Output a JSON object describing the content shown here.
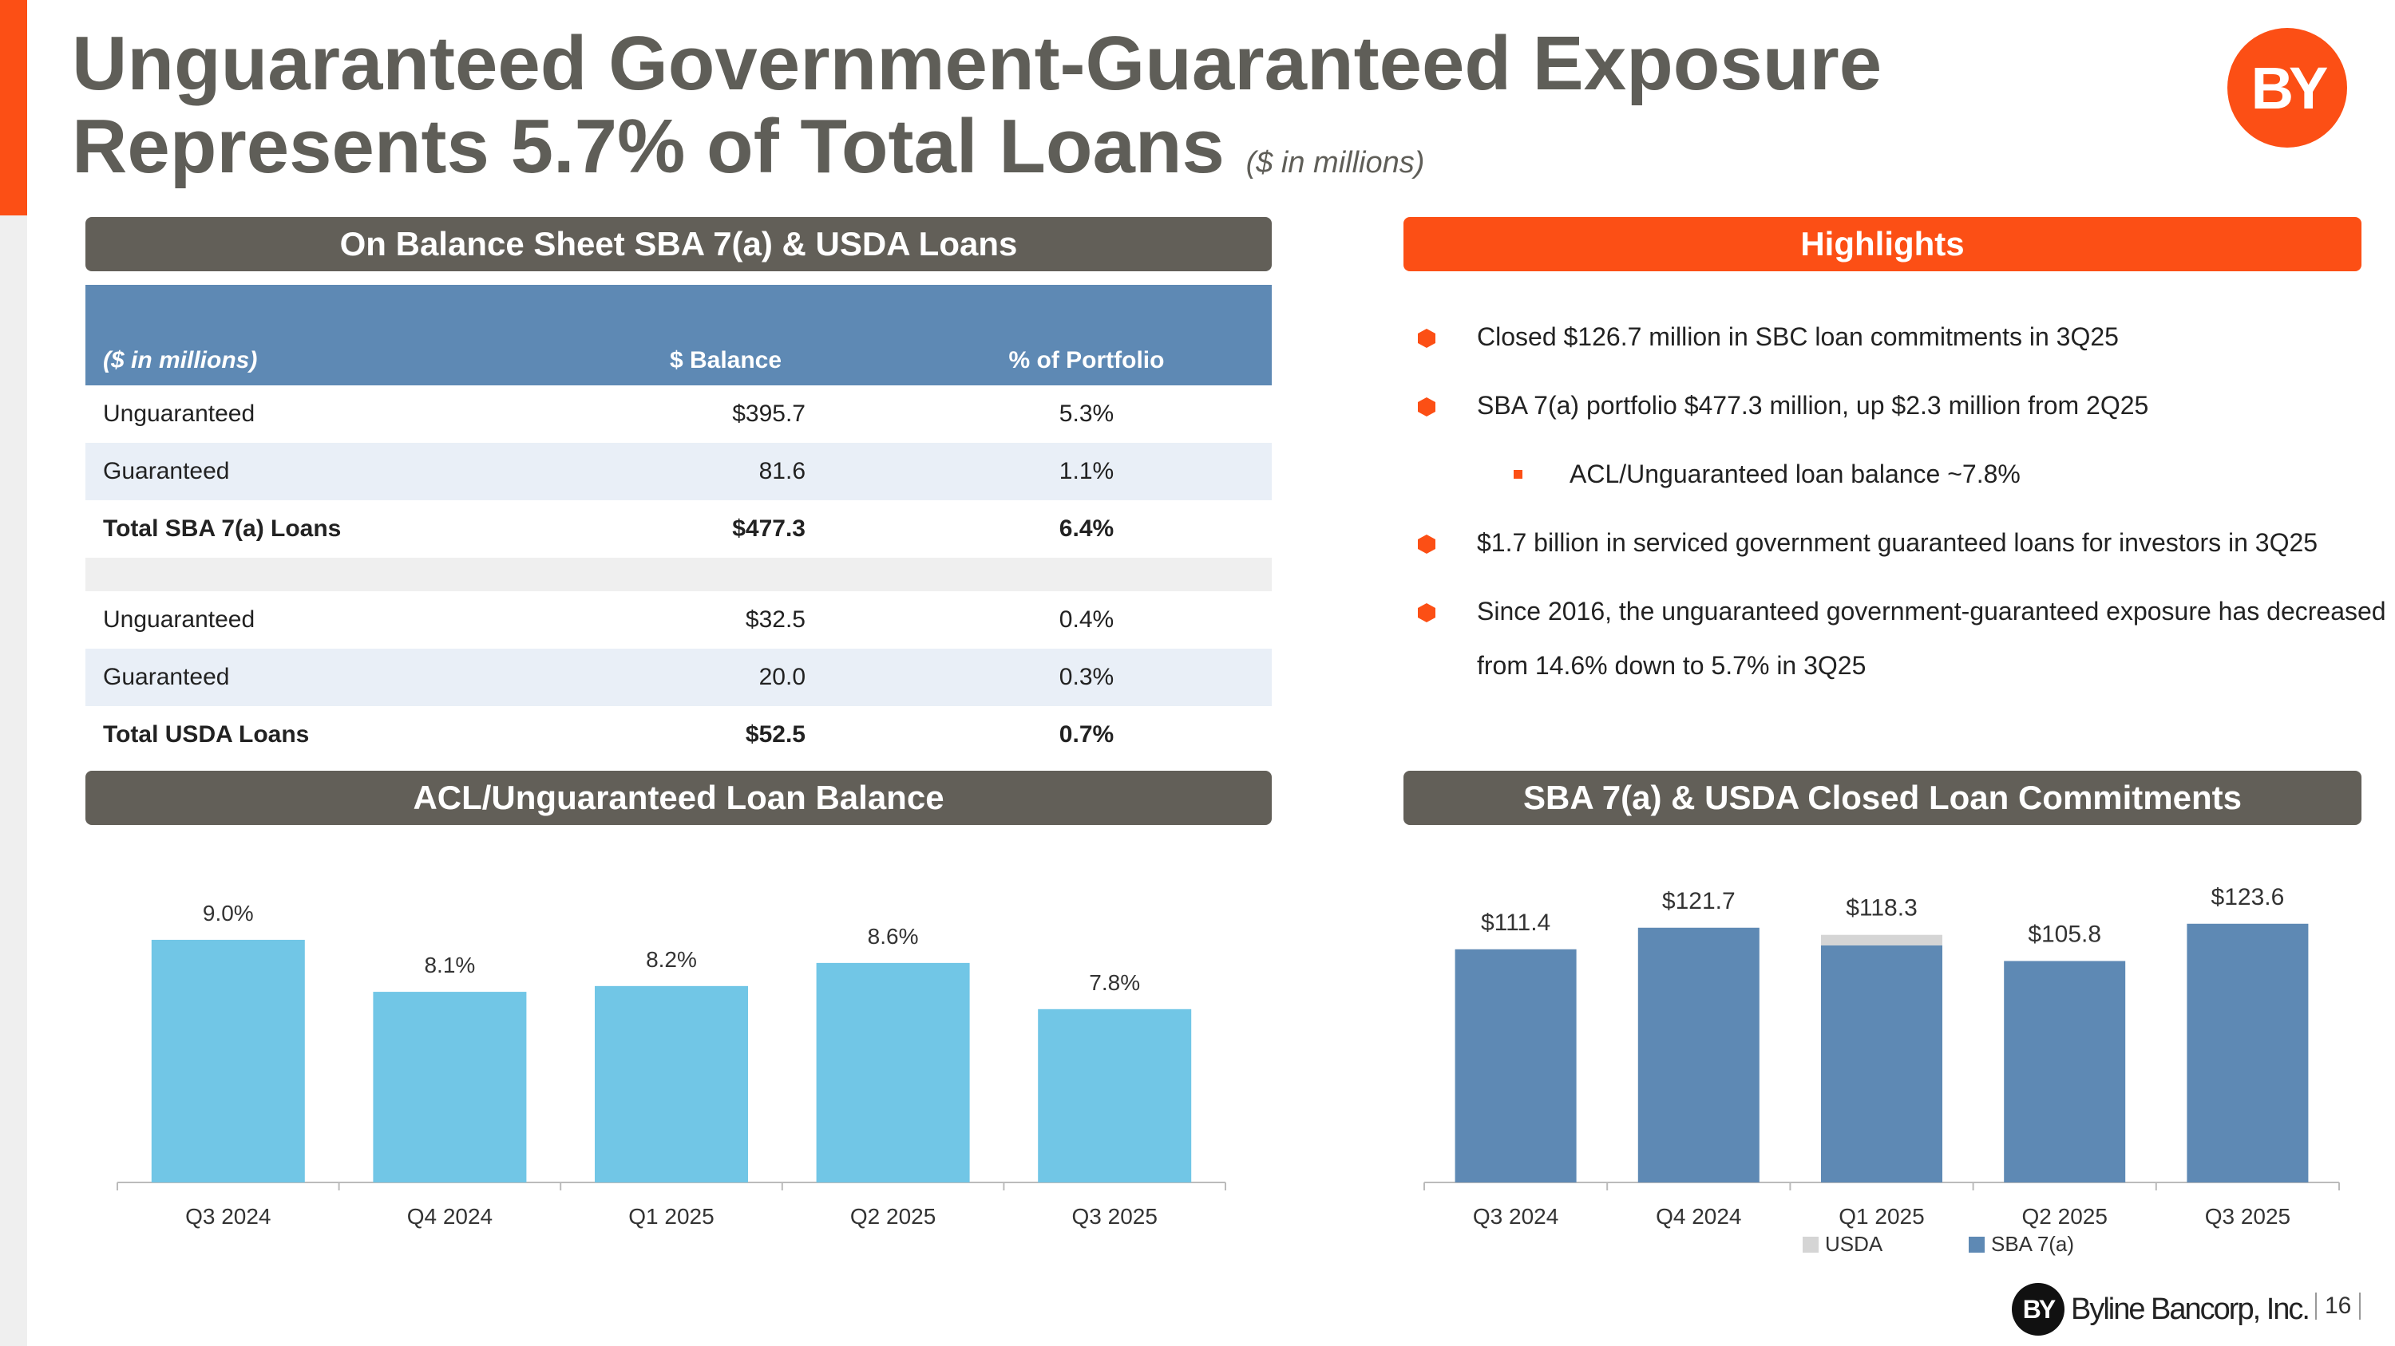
{
  "title": {
    "line1": "Unguaranteed Government-Guaranteed Exposure",
    "line2": "Represents 5.7% of Total Loans",
    "unit": "($ in millions)"
  },
  "logo": {
    "text": "BY"
  },
  "sections": {
    "table_title": "On Balance Sheet SBA 7(a) & USDA Loans",
    "highlights_title": "Highlights",
    "acl_title": "ACL/Unguaranteed Loan Balance",
    "commitments_title": "SBA 7(a) & USDA Closed Loan Commitments"
  },
  "table": {
    "headers": [
      "($ in millions)",
      "$ Balance",
      "% of Portfolio"
    ],
    "rows": [
      {
        "label": "Unguaranteed",
        "balance": "$395.7",
        "pct": "5.3%"
      },
      {
        "label": "Guaranteed",
        "balance": "81.6",
        "pct": "1.1%"
      },
      {
        "label": "Total SBA 7(a) Loans",
        "balance": "$477.3",
        "pct": "6.4%"
      },
      {
        "label": "Unguaranteed",
        "balance": "$32.5",
        "pct": "0.4%"
      },
      {
        "label": "Guaranteed",
        "balance": "20.0",
        "pct": "0.3%"
      },
      {
        "label": "Total USDA Loans",
        "balance": "$52.5",
        "pct": "0.7%"
      }
    ]
  },
  "highlights": [
    "Closed $126.7 million in SBC loan commitments in 3Q25",
    "SBA 7(a) portfolio $477.3 million, up $2.3 million from 2Q25",
    "ACL/Unguaranteed loan balance ~7.8%",
    "$1.7 billion in serviced government guaranteed loans for investors in 3Q25",
    "Since 2016, the unguaranteed government-guaranteed exposure has decreased from 14.6% down to 5.7% in 3Q25"
  ],
  "colors": {
    "accent": "#fc4f15",
    "section_grey": "#625f58",
    "table_header": "#5e89b4",
    "acl_bar": "#71c6e6",
    "sba_bar": "#5e89b4",
    "usda_bar": "#d5d5d5"
  },
  "chart_data": [
    {
      "type": "bar",
      "title": "ACL/Unguaranteed Loan Balance",
      "categories": [
        "Q3 2024",
        "Q4 2024",
        "Q1 2025",
        "Q2 2025",
        "Q3 2025"
      ],
      "values": [
        9.0,
        8.1,
        8.2,
        8.6,
        7.8
      ],
      "labels": [
        "9.0%",
        "8.1%",
        "8.2%",
        "8.6%",
        "7.8%"
      ],
      "ylim": [
        4.8,
        9.8
      ]
    },
    {
      "type": "bar",
      "stacked": true,
      "title": "SBA 7(a) & USDA Closed Loan Commitments",
      "categories": [
        "Q3 2024",
        "Q4 2024",
        "Q1 2025",
        "Q2 2025",
        "Q3 2025"
      ],
      "series": [
        {
          "name": "SBA 7(a)",
          "values": [
            111.4,
            121.7,
            113.3,
            105.8,
            123.6
          ]
        },
        {
          "name": "USDA",
          "values": [
            0,
            0,
            5.0,
            0,
            0
          ]
        }
      ],
      "totals": [
        "$111.4",
        "$121.7",
        "$118.3",
        "$105.8",
        "$123.6"
      ],
      "legend": [
        "USDA",
        "SBA 7(a)"
      ],
      "ylim": [
        0,
        138
      ]
    }
  ],
  "footer": {
    "company": "Byline Bancorp, Inc.",
    "page": "16"
  }
}
